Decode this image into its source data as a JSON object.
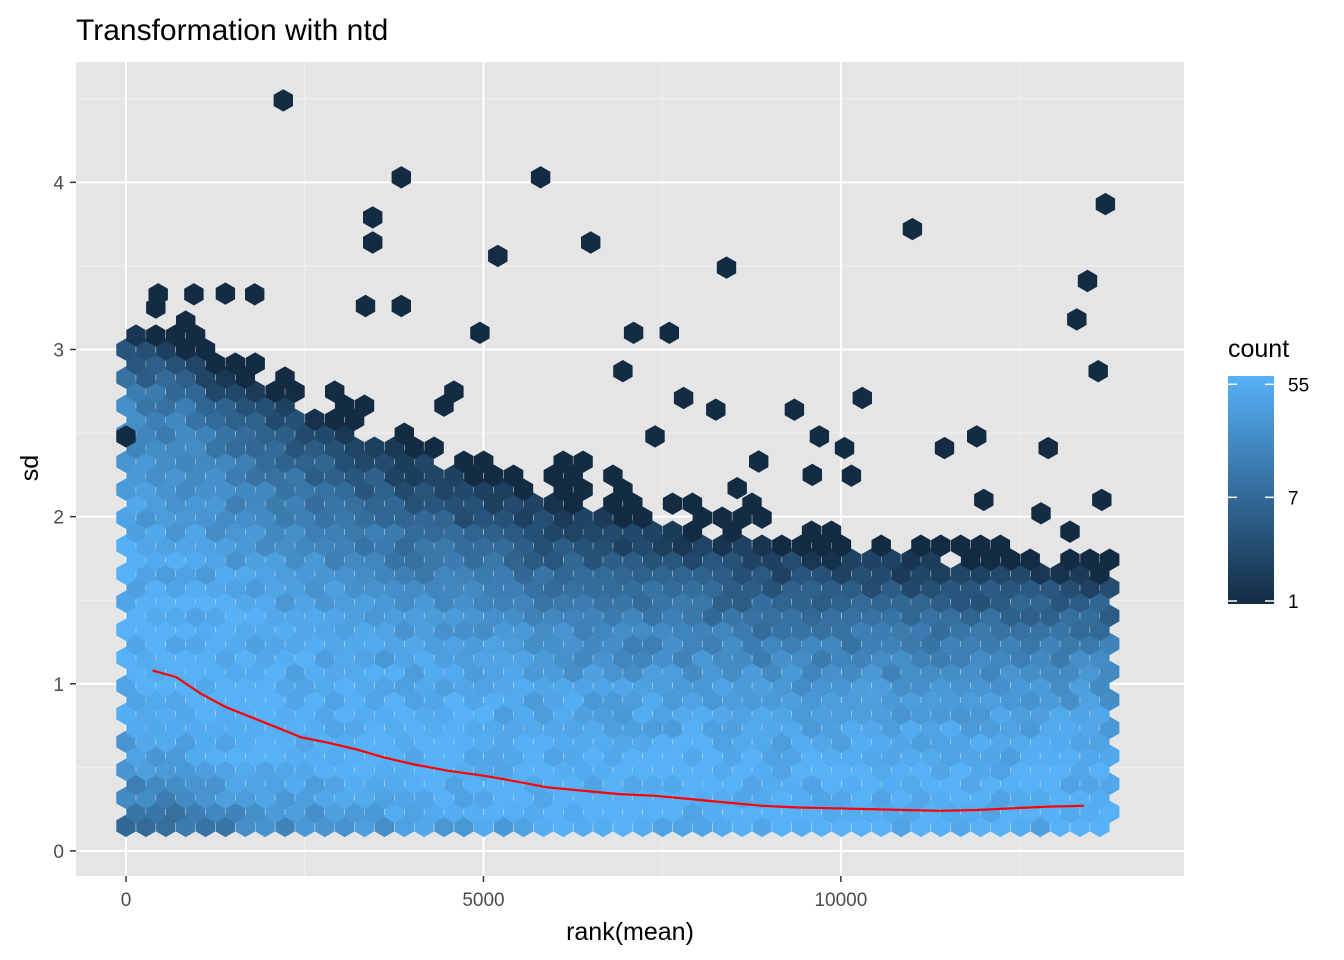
{
  "chart_data": {
    "type": "hexbin",
    "title": "Transformation with ntd",
    "xlabel": "rank(mean)",
    "ylabel": "sd",
    "xlim": [
      -700,
      14800
    ],
    "ylim": [
      -0.15,
      4.72
    ],
    "x_ticks": [
      0,
      5000,
      10000
    ],
    "x_tick_labels": [
      "0",
      "5000",
      "10000"
    ],
    "y_ticks": [
      0,
      1,
      2,
      3,
      4
    ],
    "y_tick_labels": [
      "0",
      "1",
      "2",
      "3",
      "4"
    ],
    "grid": true,
    "panel_background": "#e5e5e5",
    "legend": {
      "title": "count",
      "placement": "right",
      "scale": "log",
      "min": 1,
      "max": 64,
      "breaks": [
        1,
        7,
        55
      ],
      "break_labels": [
        "1",
        "7",
        "55"
      ],
      "low_color": "#132b43",
      "high_color": "#56b1f7"
    },
    "trend_line": {
      "color": "#ff0000",
      "x": [
        370,
        700,
        1050,
        1400,
        1750,
        2100,
        2450,
        2800,
        3200,
        3600,
        4000,
        4500,
        5000,
        5400,
        5900,
        6400,
        6900,
        7400,
        7900,
        8400,
        8900,
        9400,
        9900,
        10400,
        10900,
        11400,
        11900,
        12400,
        12900,
        13400
      ],
      "y": [
        1.08,
        1.04,
        0.94,
        0.86,
        0.8,
        0.74,
        0.68,
        0.65,
        0.61,
        0.56,
        0.52,
        0.48,
        0.45,
        0.42,
        0.38,
        0.36,
        0.34,
        0.33,
        0.31,
        0.29,
        0.27,
        0.26,
        0.255,
        0.25,
        0.245,
        0.24,
        0.245,
        0.255,
        0.265,
        0.27
      ]
    },
    "sparse_points": [
      {
        "x": 2200,
        "y": 4.49,
        "count": 1
      },
      {
        "x": 3850,
        "y": 4.03,
        "count": 1
      },
      {
        "x": 5800,
        "y": 4.03,
        "count": 1
      },
      {
        "x": 13700,
        "y": 3.87,
        "count": 1
      },
      {
        "x": 3450,
        "y": 3.79,
        "count": 1
      },
      {
        "x": 11000,
        "y": 3.72,
        "count": 1
      },
      {
        "x": 3450,
        "y": 3.64,
        "count": 1
      },
      {
        "x": 6500,
        "y": 3.64,
        "count": 1
      },
      {
        "x": 5200,
        "y": 3.56,
        "count": 1
      },
      {
        "x": 8400,
        "y": 3.49,
        "count": 1
      },
      {
        "x": 13450,
        "y": 3.41,
        "count": 1
      },
      {
        "x": 450,
        "y": 3.33,
        "count": 1
      },
      {
        "x": 950,
        "y": 3.33,
        "count": 1
      },
      {
        "x": 1800,
        "y": 3.33,
        "count": 1
      },
      {
        "x": 3350,
        "y": 3.26,
        "count": 1
      },
      {
        "x": 3850,
        "y": 3.26,
        "count": 1
      },
      {
        "x": 13300,
        "y": 3.18,
        "count": 1
      },
      {
        "x": 7100,
        "y": 3.1,
        "count": 1
      },
      {
        "x": 7600,
        "y": 3.1,
        "count": 1
      },
      {
        "x": 4950,
        "y": 3.1,
        "count": 1
      },
      {
        "x": 6950,
        "y": 2.87,
        "count": 1
      },
      {
        "x": 13600,
        "y": 2.87,
        "count": 1
      },
      {
        "x": 10300,
        "y": 2.71,
        "count": 1
      },
      {
        "x": 7800,
        "y": 2.71,
        "count": 1
      },
      {
        "x": 8250,
        "y": 2.64,
        "count": 1
      },
      {
        "x": 9350,
        "y": 2.64,
        "count": 1
      },
      {
        "x": 0,
        "y": 2.48,
        "count": 1
      },
      {
        "x": 7400,
        "y": 2.48,
        "count": 1
      },
      {
        "x": 9700,
        "y": 2.48,
        "count": 1
      },
      {
        "x": 11900,
        "y": 2.48,
        "count": 1
      },
      {
        "x": 10050,
        "y": 2.41,
        "count": 1
      },
      {
        "x": 11450,
        "y": 2.41,
        "count": 1
      },
      {
        "x": 12900,
        "y": 2.41,
        "count": 1
      },
      {
        "x": 8850,
        "y": 2.33,
        "count": 1
      },
      {
        "x": 9600,
        "y": 2.25,
        "count": 1
      },
      {
        "x": 8550,
        "y": 2.17,
        "count": 1
      },
      {
        "x": 13650,
        "y": 2.1,
        "count": 1
      },
      {
        "x": 12000,
        "y": 2.1,
        "count": 1
      },
      {
        "x": 12800,
        "y": 2.02,
        "count": 1
      }
    ],
    "density_note_series": {
      "name": "",
      "x_range_of_bins": [
        0,
        13800
      ],
      "bin_count_range": [
        1,
        64
      ]
    }
  }
}
